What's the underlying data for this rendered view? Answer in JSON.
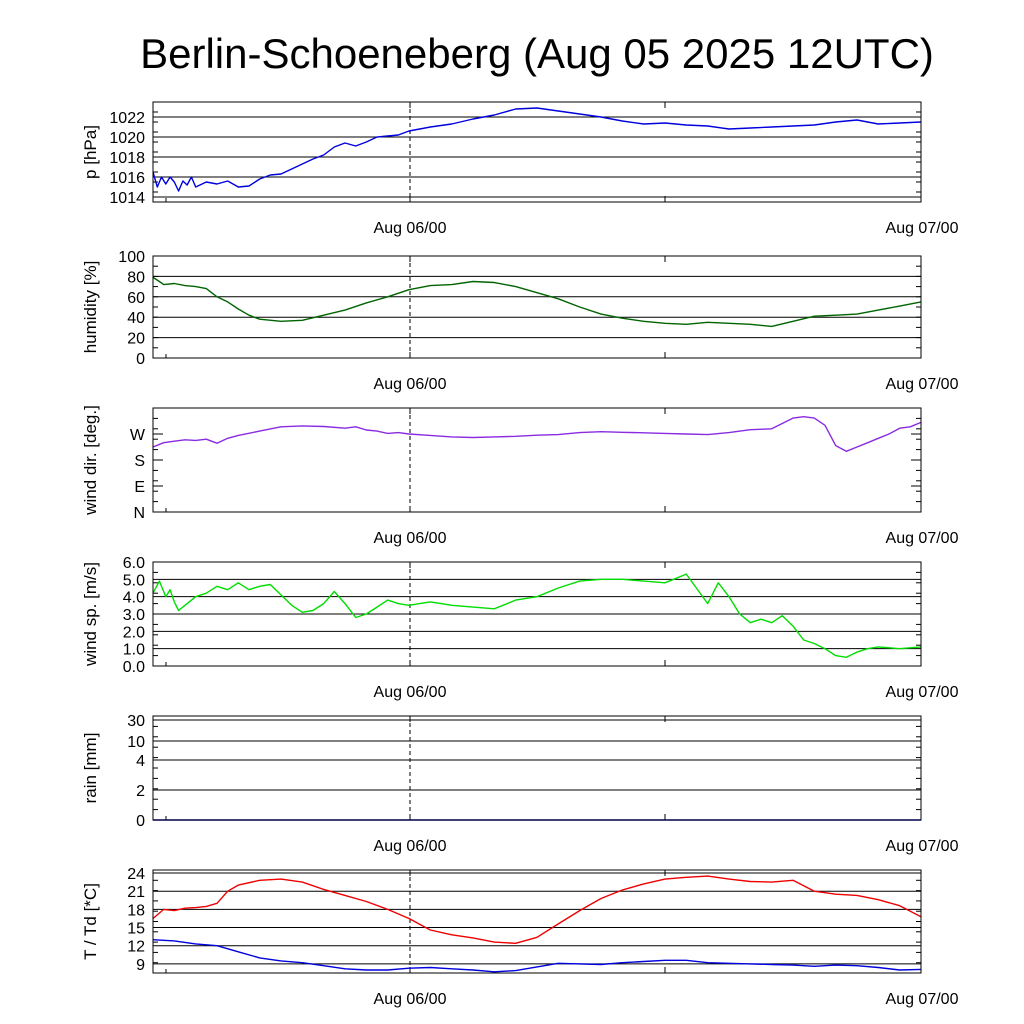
{
  "title": "Berlin-Schoeneberg (Aug 05 2025 12UTC)",
  "x_time_labels": [
    "Aug 06/00",
    "Aug 07/00"
  ],
  "chart_data": [
    {
      "type": "line",
      "ylabel": "p [hPa]",
      "ylim": [
        1013.5,
        1023.5
      ],
      "yticks": [
        1014,
        1016,
        1018,
        1020,
        1022
      ],
      "yticklabels": [
        "1014",
        "1016",
        "1018",
        "1020",
        "1022"
      ],
      "xlim": [
        0,
        36
      ],
      "xticklabels": [
        "Aug 06/00",
        "Aug 07/00"
      ],
      "grid": true,
      "series": [
        {
          "color": "#0000dd",
          "x": [
            0,
            0.2,
            0.4,
            0.6,
            0.8,
            1,
            1.2,
            1.4,
            1.6,
            1.8,
            2,
            2.5,
            3,
            3.5,
            4,
            4.5,
            5,
            5.5,
            6,
            6.5,
            7,
            7.5,
            8,
            8.5,
            9,
            9.5,
            10,
            10.5,
            11,
            11.5,
            12,
            12.5,
            13,
            14,
            15,
            16,
            17,
            18,
            19,
            20,
            21,
            22,
            23,
            24,
            25,
            26,
            27,
            28,
            29,
            30,
            31,
            32,
            33,
            34,
            35,
            36
          ],
          "y": [
            1016.5,
            1015.0,
            1016.0,
            1015.3,
            1016.0,
            1015.5,
            1014.6,
            1015.6,
            1015.2,
            1016.0,
            1015.0,
            1015.5,
            1015.3,
            1015.6,
            1015.0,
            1015.1,
            1015.8,
            1016.2,
            1016.3,
            1016.8,
            1017.3,
            1017.8,
            1018.2,
            1019.0,
            1019.4,
            1019.1,
            1019.5,
            1020.0,
            1020.1,
            1020.2,
            1020.6,
            1020.8,
            1021.0,
            1021.3,
            1021.8,
            1022.2,
            1022.8,
            1022.9,
            1022.6,
            1022.3,
            1022.0,
            1021.6,
            1021.3,
            1021.4,
            1021.2,
            1021.1,
            1020.8,
            1020.9,
            1021.0,
            1021.1,
            1021.2,
            1021.5,
            1021.7,
            1021.3,
            1021.4,
            1021.5
          ]
        }
      ]
    },
    {
      "type": "line",
      "ylabel": "humidity [%]",
      "ylim": [
        0,
        100
      ],
      "yticks": [
        0,
        20,
        40,
        60,
        80,
        100
      ],
      "yticklabels": [
        "0",
        "20",
        "40",
        "60",
        "80",
        "100"
      ],
      "xlim": [
        0,
        36
      ],
      "xticklabels": [
        "Aug 06/00",
        "Aug 07/00"
      ],
      "grid": true,
      "series": [
        {
          "color": "#006400",
          "x": [
            0,
            0.3,
            0.5,
            1,
            1.5,
            2,
            2.5,
            3,
            3.5,
            4,
            4.5,
            5,
            6,
            7,
            8,
            9,
            10,
            11,
            12,
            13,
            14,
            15,
            16,
            17,
            18,
            19,
            20,
            21,
            22,
            23,
            24,
            25,
            26,
            27,
            28,
            29,
            30,
            31,
            32,
            33,
            34,
            35,
            36
          ],
          "y": [
            79,
            75,
            72,
            73,
            71,
            70,
            68,
            60,
            55,
            48,
            42,
            38,
            36,
            37,
            42,
            47,
            54,
            60,
            67,
            71,
            72,
            75,
            74,
            70,
            64,
            58,
            50,
            43,
            39,
            36,
            34,
            33,
            35,
            34,
            33,
            31,
            36,
            41,
            42,
            43,
            47,
            51,
            55
          ]
        }
      ]
    },
    {
      "type": "line",
      "ylabel": "wind dir. [deg.]",
      "ylim": [
        0,
        360
      ],
      "yticks": [
        0,
        90,
        180,
        270
      ],
      "yticklabels": [
        "N",
        "E",
        "S",
        "W"
      ],
      "xlim": [
        0,
        36
      ],
      "xticklabels": [
        "Aug 06/00",
        "Aug 07/00"
      ],
      "grid": false,
      "series": [
        {
          "color": "#8a2be2",
          "x": [
            0,
            0.5,
            1,
            1.5,
            2,
            2.5,
            3,
            3.5,
            4,
            5,
            6,
            7,
            8,
            9,
            9.5,
            10,
            10.5,
            11,
            11.5,
            12,
            13,
            14,
            15,
            16,
            17,
            18,
            19,
            20,
            21,
            22,
            23,
            24,
            25,
            26,
            27,
            28,
            29,
            30,
            30.5,
            31,
            31.5,
            32,
            32.5,
            33,
            33.5,
            34,
            34.5,
            35,
            35.5,
            36
          ],
          "y": [
            225,
            240,
            245,
            250,
            248,
            252,
            238,
            255,
            265,
            280,
            295,
            298,
            296,
            290,
            295,
            284,
            280,
            272,
            275,
            270,
            265,
            260,
            258,
            260,
            262,
            266,
            268,
            275,
            278,
            276,
            274,
            272,
            270,
            268,
            275,
            285,
            288,
            325,
            330,
            325,
            300,
            230,
            210,
            225,
            240,
            255,
            270,
            290,
            295,
            310
          ]
        }
      ]
    },
    {
      "type": "line",
      "ylabel": "wind sp. [m/s]",
      "ylim": [
        0,
        6.0
      ],
      "yticks": [
        0,
        1.0,
        2.0,
        3.0,
        4.0,
        5.0,
        6.0
      ],
      "yticklabels": [
        "0.0",
        "1.0",
        "2.0",
        "3.0",
        "4.0",
        "5.0",
        "6.0"
      ],
      "xlim": [
        0,
        36
      ],
      "xticklabels": [
        "Aug 06/00",
        "Aug 07/00"
      ],
      "grid": true,
      "series": [
        {
          "color": "#00dd00",
          "x": [
            0,
            0.3,
            0.6,
            0.8,
            1,
            1.2,
            1.5,
            2,
            2.5,
            3,
            3.5,
            4,
            4.5,
            5,
            5.5,
            6,
            6.5,
            7,
            7.5,
            8,
            8.5,
            9,
            9.5,
            10,
            10.5,
            11,
            11.5,
            12,
            12.5,
            13,
            13.5,
            14,
            15,
            16,
            17,
            18,
            19,
            20,
            21,
            22,
            23,
            24,
            25,
            26,
            26.5,
            27,
            27.5,
            28,
            28.5,
            29,
            29.5,
            30,
            30.5,
            31,
            31.5,
            32,
            32.5,
            33,
            33.5,
            34,
            35,
            36
          ],
          "y": [
            4.2,
            4.9,
            4.0,
            4.4,
            3.7,
            3.2,
            3.5,
            4.0,
            4.2,
            4.6,
            4.4,
            4.8,
            4.4,
            4.6,
            4.7,
            4.1,
            3.5,
            3.1,
            3.2,
            3.6,
            4.3,
            3.6,
            2.8,
            3.0,
            3.4,
            3.8,
            3.6,
            3.5,
            3.6,
            3.7,
            3.6,
            3.5,
            3.4,
            3.3,
            3.8,
            4.0,
            4.5,
            4.9,
            5.0,
            5.0,
            4.9,
            4.8,
            5.3,
            3.6,
            4.8,
            4.0,
            3.0,
            2.5,
            2.7,
            2.5,
            2.9,
            2.3,
            1.5,
            1.3,
            1.0,
            0.6,
            0.5,
            0.8,
            1.0,
            1.1,
            1.0,
            1.1
          ]
        }
      ]
    },
    {
      "type": "line",
      "ylabel": "rain [mm]",
      "ylim": [
        0,
        32
      ],
      "yticks": [
        0,
        2,
        4,
        10,
        30
      ],
      "yticklabels": [
        "0",
        "2",
        "4",
        "10",
        "30"
      ],
      "xlim": [
        0,
        36
      ],
      "xticklabels": [
        "Aug 06/00",
        "Aug 07/00"
      ],
      "grid": true,
      "series": [
        {
          "color": "#0000dd",
          "x": [
            0,
            36
          ],
          "y": [
            0,
            0
          ]
        }
      ]
    },
    {
      "type": "line",
      "ylabel": "T / Td [*C]",
      "ylim": [
        7.5,
        24.5
      ],
      "yticks": [
        9,
        12,
        15,
        18,
        21,
        24
      ],
      "yticklabels": [
        "9",
        "12",
        "15",
        "18",
        "21",
        "24"
      ],
      "xlim": [
        0,
        36
      ],
      "xticklabels": [
        "Aug 06/00",
        "Aug 07/00"
      ],
      "grid": true,
      "series": [
        {
          "color": "#ee0000",
          "x": [
            0,
            0.5,
            1,
            1.5,
            2,
            2.5,
            3,
            3.5,
            4,
            5,
            6,
            7,
            8,
            9,
            10,
            11,
            12,
            13,
            14,
            15,
            16,
            17,
            18,
            19,
            20,
            21,
            22,
            23,
            24,
            25,
            26,
            27,
            28,
            29,
            30,
            31,
            32,
            33,
            34,
            35,
            36
          ],
          "y": [
            16.5,
            18.0,
            17.8,
            18.2,
            18.3,
            18.5,
            19.0,
            21.0,
            22.0,
            22.8,
            23.0,
            22.5,
            21.3,
            20.3,
            19.3,
            18.0,
            16.5,
            14.6,
            13.8,
            13.3,
            12.6,
            12.4,
            13.4,
            15.6,
            17.8,
            19.8,
            21.2,
            22.2,
            23.0,
            23.3,
            23.5,
            23.0,
            22.6,
            22.5,
            22.8,
            21.0,
            20.5,
            20.3,
            19.6,
            18.6,
            16.8
          ]
        },
        {
          "color": "#0000dd",
          "x": [
            0,
            1,
            2,
            3,
            4,
            5,
            6,
            7,
            8,
            9,
            10,
            11,
            12,
            13,
            14,
            15,
            16,
            17,
            18,
            19,
            20,
            21,
            22,
            23,
            24,
            25,
            26,
            27,
            28,
            29,
            30,
            31,
            32,
            33,
            34,
            35,
            36
          ],
          "y": [
            13.0,
            12.8,
            12.3,
            12.0,
            11.0,
            10.0,
            9.5,
            9.2,
            8.7,
            8.2,
            8.0,
            8.0,
            8.3,
            8.4,
            8.2,
            8.0,
            7.7,
            7.9,
            8.5,
            9.1,
            9.0,
            8.9,
            9.2,
            9.4,
            9.6,
            9.6,
            9.2,
            9.1,
            9.0,
            8.9,
            8.8,
            8.6,
            8.8,
            8.7,
            8.4,
            8.0,
            8.1
          ]
        }
      ]
    }
  ]
}
